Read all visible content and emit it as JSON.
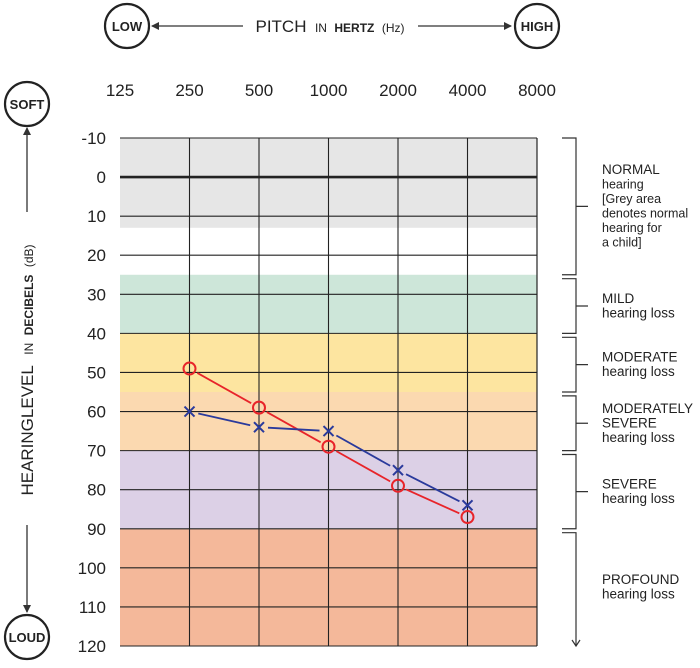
{
  "header": {
    "low_label": "LOW",
    "high_label": "HIGH",
    "pitch_word": "PITCH",
    "pitch_in": "IN",
    "pitch_unit": "HERTZ",
    "pitch_abbr": "(Hz)"
  },
  "side": {
    "soft_label": "SOFT",
    "loud_label": "LOUD",
    "level_word": "HEARINGLEVEL",
    "level_in": "IN",
    "level_unit": "DECIBELS",
    "level_abbr": "(dB)"
  },
  "categories": [
    {
      "from_db": -10,
      "to_db": 25,
      "lines": [
        {
          "text": "NORMAL",
          "role": "title"
        },
        {
          "text": "hearing",
          "role": "sub"
        },
        {
          "text": "[Grey area",
          "role": "sub"
        },
        {
          "text": "denotes normal",
          "role": "sub"
        },
        {
          "text": "hearing for",
          "role": "sub"
        },
        {
          "text": "a child]",
          "role": "sub"
        }
      ]
    },
    {
      "from_db": 26,
      "to_db": 40,
      "lines": [
        {
          "text": "MILD",
          "role": "title"
        },
        {
          "text": "hearing loss",
          "role": "title"
        }
      ]
    },
    {
      "from_db": 41,
      "to_db": 55,
      "lines": [
        {
          "text": "MODERATE",
          "role": "title"
        },
        {
          "text": "hearing loss",
          "role": "title"
        }
      ]
    },
    {
      "from_db": 56,
      "to_db": 70,
      "lines": [
        {
          "text": "MODERATELY",
          "role": "title"
        },
        {
          "text": "SEVERE",
          "role": "title"
        },
        {
          "text": "hearing loss",
          "role": "title"
        }
      ]
    },
    {
      "from_db": 71,
      "to_db": 90,
      "lines": [
        {
          "text": "SEVERE",
          "role": "title"
        },
        {
          "text": "hearing loss",
          "role": "title"
        }
      ]
    },
    {
      "from_db": 91,
      "to_db": 120,
      "lines": [
        {
          "text": "PROFOUND",
          "role": "title"
        },
        {
          "text": "hearing loss",
          "role": "title"
        }
      ]
    }
  ],
  "chart_data": {
    "type": "line",
    "x_scale": "log2",
    "x_ticks": [
      125,
      250,
      500,
      1000,
      2000,
      4000,
      8000
    ],
    "y_ticks": [
      -10,
      0,
      10,
      20,
      30,
      40,
      50,
      60,
      70,
      80,
      90,
      100,
      110,
      120
    ],
    "ylim": [
      -10,
      120
    ],
    "y_inverted": true,
    "grid": true,
    "bands": [
      {
        "from_db": -10,
        "to_db": 13,
        "color": "#e6e6e6"
      },
      {
        "from_db": 13,
        "to_db": 25,
        "color": "#ffffff"
      },
      {
        "from_db": 25,
        "to_db": 40,
        "color": "#cde6d9"
      },
      {
        "from_db": 40,
        "to_db": 55,
        "color": "#fde5a0"
      },
      {
        "from_db": 55,
        "to_db": 70,
        "color": "#fbd9b0"
      },
      {
        "from_db": 70,
        "to_db": 90,
        "color": "#dcd0e6"
      },
      {
        "from_db": 90,
        "to_db": 120,
        "color": "#f4b89a"
      }
    ],
    "series": [
      {
        "marker": "circle",
        "color": "#e8242a",
        "x": [
          250,
          500,
          1000,
          2000,
          4000
        ],
        "values": [
          49,
          59,
          69,
          79,
          87
        ]
      },
      {
        "marker": "cross",
        "color": "#2a3a9c",
        "x": [
          250,
          500,
          1000,
          2000,
          4000
        ],
        "values": [
          60,
          64,
          65,
          75,
          84
        ]
      }
    ]
  }
}
